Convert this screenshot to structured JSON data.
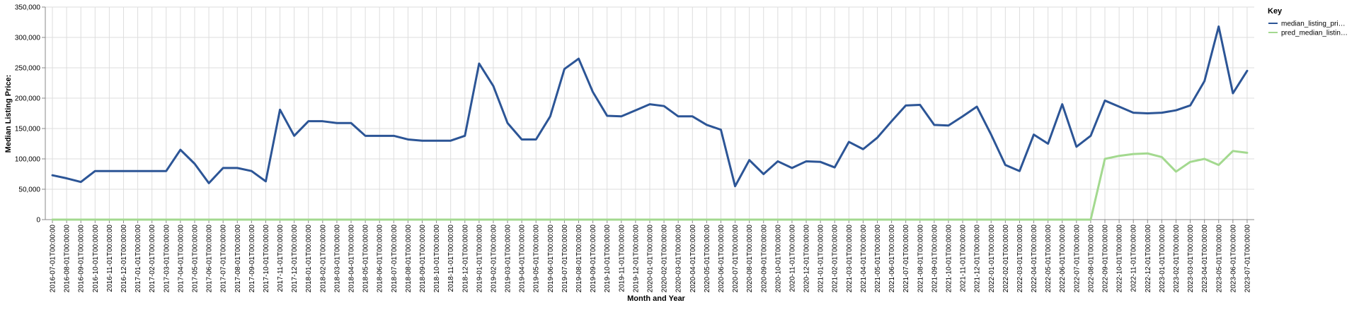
{
  "chart_data": {
    "type": "line",
    "xlabel": "Month and Year",
    "ylabel": "Median Listing Price:",
    "ylim": [
      0,
      350000
    ],
    "y_ticks": [
      "0",
      "50,000",
      "100,000",
      "150,000",
      "200,000",
      "250,000",
      "300,000",
      "350,000"
    ],
    "y_tick_values": [
      0,
      50000,
      100000,
      150000,
      200000,
      250000,
      300000,
      350000
    ],
    "grid": true,
    "legend_position": "top-right",
    "legend_title": "Key",
    "categories": [
      "2016-07-01T00:00:00",
      "2016-08-01T00:00:00",
      "2016-09-01T00:00:00",
      "2016-10-01T00:00:00",
      "2016-11-01T00:00:00",
      "2016-12-01T00:00:00",
      "2017-01-01T00:00:00",
      "2017-02-01T00:00:00",
      "2017-03-01T00:00:00",
      "2017-04-01T00:00:00",
      "2017-05-01T00:00:00",
      "2017-06-01T00:00:00",
      "2017-07-01T00:00:00",
      "2017-08-01T00:00:00",
      "2017-09-01T00:00:00",
      "2017-10-01T00:00:00",
      "2017-11-01T00:00:00",
      "2017-12-01T00:00:00",
      "2018-01-01T00:00:00",
      "2018-02-01T00:00:00",
      "2018-03-01T00:00:00",
      "2018-04-01T00:00:00",
      "2018-05-01T00:00:00",
      "2018-06-01T00:00:00",
      "2018-07-01T00:00:00",
      "2018-08-01T00:00:00",
      "2018-09-01T00:00:00",
      "2018-10-01T00:00:00",
      "2018-11-01T00:00:00",
      "2018-12-01T00:00:00",
      "2019-01-01T00:00:00",
      "2019-02-01T00:00:00",
      "2019-03-01T00:00:00",
      "2019-04-01T00:00:00",
      "2019-05-01T00:00:00",
      "2019-06-01T00:00:00",
      "2019-07-01T00:00:00",
      "2019-08-01T00:00:00",
      "2019-09-01T00:00:00",
      "2019-10-01T00:00:00",
      "2019-11-01T00:00:00",
      "2019-12-01T00:00:00",
      "2020-01-01T00:00:00",
      "2020-02-01T00:00:00",
      "2020-03-01T00:00:00",
      "2020-04-01T00:00:00",
      "2020-05-01T00:00:00",
      "2020-06-01T00:00:00",
      "2020-07-01T00:00:00",
      "2020-08-01T00:00:00",
      "2020-09-01T00:00:00",
      "2020-10-01T00:00:00",
      "2020-11-01T00:00:00",
      "2020-12-01T00:00:00",
      "2021-01-01T00:00:00",
      "2021-02-01T00:00:00",
      "2021-03-01T00:00:00",
      "2021-04-01T00:00:00",
      "2021-05-01T00:00:00",
      "2021-06-01T00:00:00",
      "2021-07-01T00:00:00",
      "2021-08-01T00:00:00",
      "2021-09-01T00:00:00",
      "2021-10-01T00:00:00",
      "2021-11-01T00:00:00",
      "2021-12-01T00:00:00",
      "2022-01-01T00:00:00",
      "2022-02-01T00:00:00",
      "2022-03-01T00:00:00",
      "2022-04-01T00:00:00",
      "2022-05-01T00:00:00",
      "2022-06-01T00:00:00",
      "2022-07-01T00:00:00",
      "2022-08-01T00:00:00",
      "2022-09-01T00:00:00",
      "2022-10-01T00:00:00",
      "2022-11-01T00:00:00",
      "2022-12-01T00:00:00",
      "2023-01-01T00:00:00",
      "2023-02-01T00:00:00",
      "2023-03-01T00:00:00",
      "2023-04-01T00:00:00",
      "2023-05-01T00:00:00",
      "2023-06-01T00:00:00",
      "2023-07-01T00:00:00"
    ],
    "series": [
      {
        "name": "median_listing_pri…",
        "color": "#2c5596",
        "values": [
          73000,
          68000,
          62000,
          80000,
          80000,
          80000,
          80000,
          80000,
          80000,
          115000,
          92000,
          60000,
          85000,
          85000,
          80000,
          63000,
          181000,
          138000,
          162000,
          162000,
          159000,
          159000,
          138000,
          138000,
          138000,
          132000,
          130000,
          130000,
          130000,
          138000,
          257000,
          220000,
          159000,
          132000,
          132000,
          170000,
          248000,
          265000,
          210000,
          171000,
          170000,
          180000,
          190000,
          187000,
          170000,
          170000,
          156000,
          148000,
          55000,
          98000,
          75000,
          96000,
          85000,
          96000,
          95000,
          86000,
          128000,
          116000,
          135000,
          162000,
          188000,
          189000,
          156000,
          155000,
          170000,
          186000,
          140000,
          90000,
          80000,
          140000,
          125000,
          190000,
          120000,
          138000,
          196000,
          186000,
          176000,
          175000,
          176000,
          180000,
          188000,
          228000,
          318000,
          208000,
          245000
        ]
      },
      {
        "name": "pred_median_listin…",
        "color": "#a3d98f",
        "values": [
          0,
          0,
          0,
          0,
          0,
          0,
          0,
          0,
          0,
          0,
          0,
          0,
          0,
          0,
          0,
          0,
          0,
          0,
          0,
          0,
          0,
          0,
          0,
          0,
          0,
          0,
          0,
          0,
          0,
          0,
          0,
          0,
          0,
          0,
          0,
          0,
          0,
          0,
          0,
          0,
          0,
          0,
          0,
          0,
          0,
          0,
          0,
          0,
          0,
          0,
          0,
          0,
          0,
          0,
          0,
          0,
          0,
          0,
          0,
          0,
          0,
          0,
          0,
          0,
          0,
          0,
          0,
          0,
          0,
          0,
          0,
          0,
          0,
          0,
          100000,
          105000,
          108000,
          109000,
          103000,
          79000,
          95000,
          100000,
          90000,
          113000,
          110000
        ]
      }
    ]
  }
}
